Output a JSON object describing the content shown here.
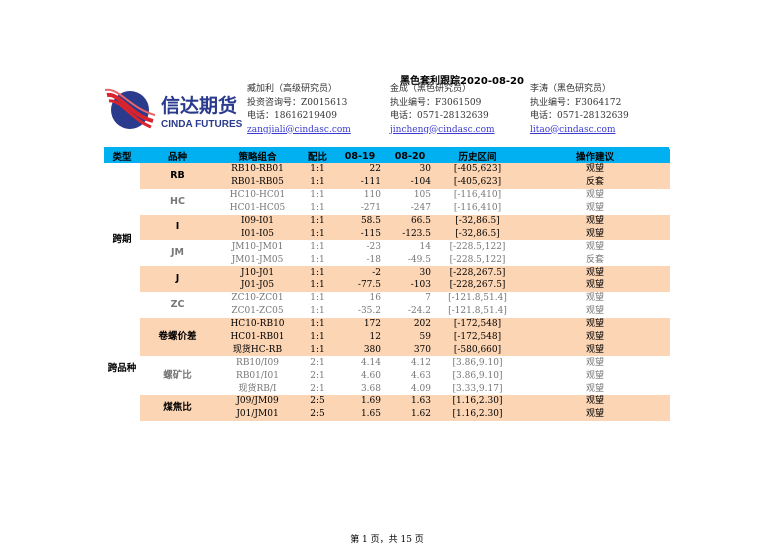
{
  "header": {
    "title": "黑色套利跟踪2020-08-20",
    "logo": {
      "cn": "信达期货",
      "en": "CINDA FUTURES"
    },
    "analysts": [
      {
        "name": "臧加利（高级研究员）",
        "license": "投资咨询号：Z0015613",
        "phone": "电话：18616219409",
        "email": "zangjiali@cindasc.com"
      },
      {
        "name": "金成（黑色研究员）",
        "license": "执业编号：F3061509",
        "phone": "电话：0571-28132639",
        "email": "jincheng@cindasc.com"
      },
      {
        "name": "李涛（黑色研究员）",
        "license": "执业编号：F3064172",
        "phone": "电话：0571-28132639",
        "email": "litao@cindasc.com"
      }
    ]
  },
  "table": {
    "columns": [
      "类型",
      "品种",
      "策略组合",
      "配比",
      "08-19",
      "08-20",
      "历史区间",
      "操作建议"
    ],
    "types": [
      "跨期",
      "跨品种"
    ],
    "groups": [
      "RB",
      "HC",
      "I",
      "JM",
      "J",
      "ZC",
      "卷螺价差",
      "螺矿比",
      "煤焦比"
    ],
    "rows": [
      [
        "RB10-RB01",
        "1:1",
        "22",
        "30",
        "[-405,623]",
        "观望"
      ],
      [
        "RB01-RB05",
        "1:1",
        "-111",
        "-104",
        "[-405,623]",
        "反套"
      ],
      [
        "HC10-HC01",
        "1:1",
        "110",
        "105",
        "[-116,410]",
        "观望"
      ],
      [
        "HC01-HC05",
        "1:1",
        "-271",
        "-247",
        "[-116,410]",
        "观望"
      ],
      [
        "I09-I01",
        "1:1",
        "58.5",
        "66.5",
        "[-32,86.5]",
        "观望"
      ],
      [
        "I01-I05",
        "1:1",
        "-115",
        "-123.5",
        "[-32,86.5]",
        "观望"
      ],
      [
        "JM10-JM01",
        "1:1",
        "-23",
        "14",
        "[-228.5,122]",
        "观望"
      ],
      [
        "JM01-JM05",
        "1:1",
        "-18",
        "-49.5",
        "[-228.5,122]",
        "反套"
      ],
      [
        "J10-J01",
        "1:1",
        "-2",
        "30",
        "[-228,267.5]",
        "观望"
      ],
      [
        "J01-J05",
        "1:1",
        "-77.5",
        "-103",
        "[-228,267.5]",
        "观望"
      ],
      [
        "ZC10-ZC01",
        "1:1",
        "16",
        "7",
        "[-121.8,51.4]",
        "观望"
      ],
      [
        "ZC01-ZC05",
        "1:1",
        "-35.2",
        "-24.2",
        "[-121.8,51.4]",
        "观望"
      ],
      [
        "HC10-RB10",
        "1:1",
        "172",
        "202",
        "[-172,548]",
        "观望"
      ],
      [
        "HC01-RB01",
        "1:1",
        "12",
        "59",
        "[-172,548]",
        "观望"
      ],
      [
        "现货HC-RB",
        "1:1",
        "380",
        "370",
        "[-580,660]",
        "观望"
      ],
      [
        "RB10/I09",
        "2:1",
        "4.14",
        "4.12",
        "[3.86,9.10]",
        "观望"
      ],
      [
        "RB01/I01",
        "2:1",
        "4.60",
        "4.63",
        "[3.86,9.10]",
        "观望"
      ],
      [
        "现货RB/I",
        "2:1",
        "3.68",
        "4.09",
        "[3.33,9.17]",
        "观望"
      ],
      [
        "J09/JM09",
        "2:5",
        "1.69",
        "1.63",
        "[1.16,2.30]",
        "观望"
      ],
      [
        "J01/JM01",
        "2:5",
        "1.65",
        "1.62",
        "[1.16,2.30]",
        "观望"
      ]
    ]
  },
  "colors": {
    "header_bg": "#00b0f0",
    "highlight": "#fcd5b4"
  },
  "footer": {
    "page": "第 1 页，共 15 页"
  }
}
